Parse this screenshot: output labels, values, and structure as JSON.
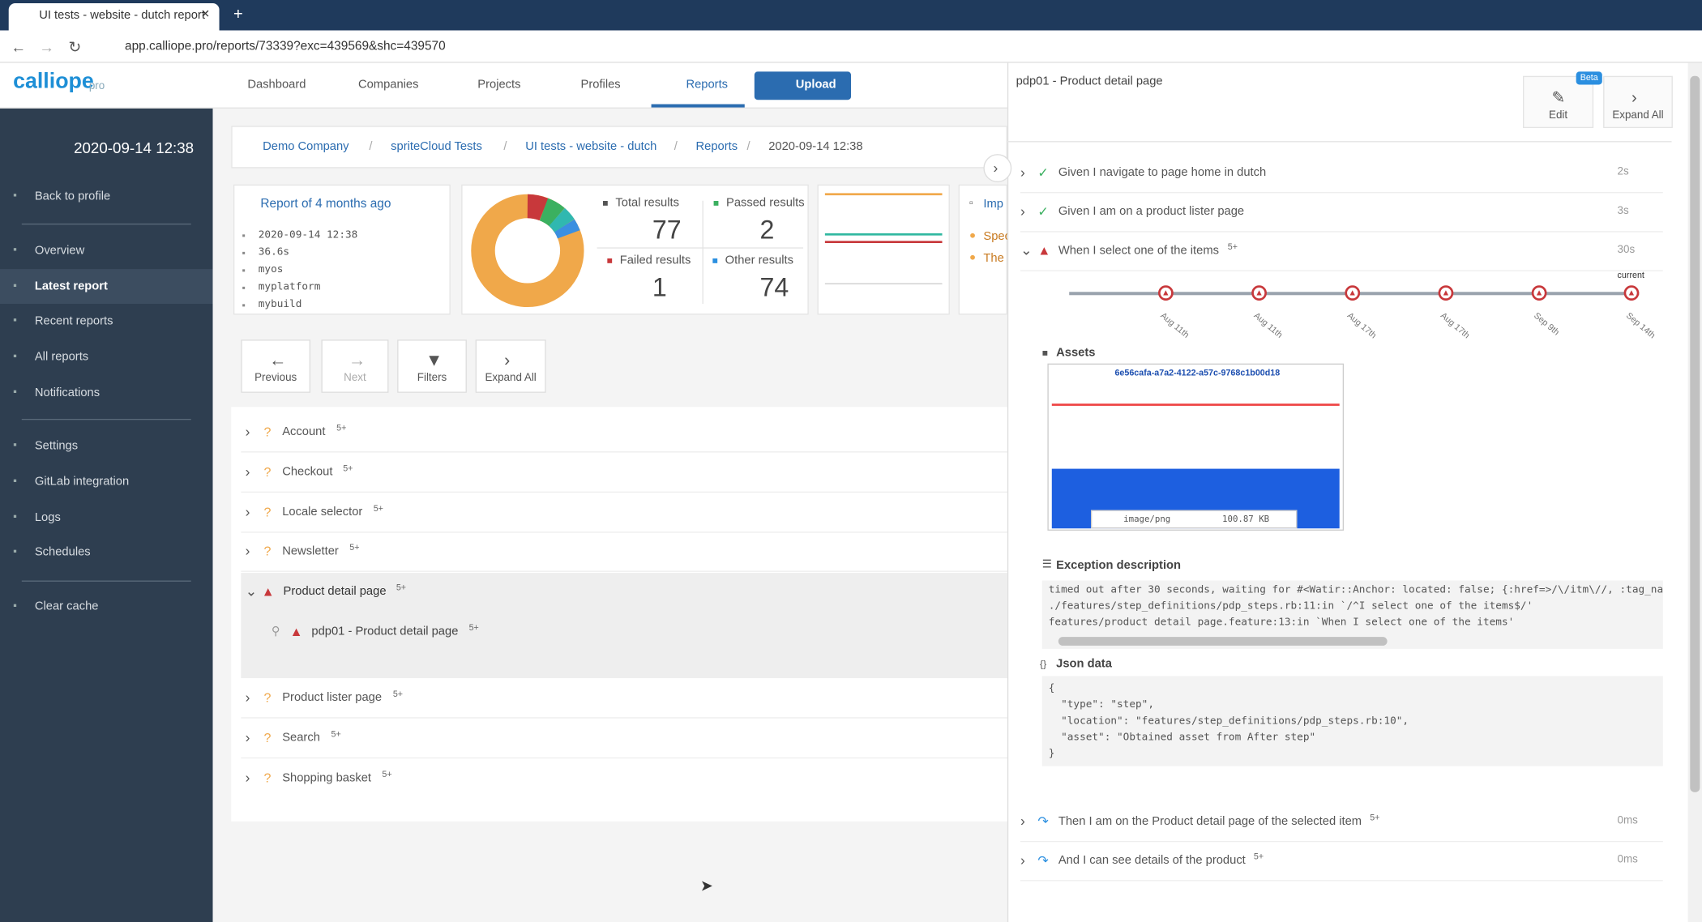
{
  "browser": {
    "tab_title": "UI tests - website - dutch report",
    "url": "app.calliope.pro/reports/73339?exc=439569&shc=439570"
  },
  "brand": {
    "logo": "calliope",
    "suffix": "pro"
  },
  "nav": [
    "Dashboard",
    "Companies",
    "Projects",
    "Profiles",
    "Reports",
    "Upload"
  ],
  "sidebar": {
    "date": "2020-09-14 12:38",
    "items": [
      "Back to profile",
      "Overview",
      "Latest report",
      "Recent reports",
      "All reports",
      "Notifications",
      "Settings",
      "GitLab integration",
      "Logs",
      "Schedules",
      "Clear cache"
    ]
  },
  "breadcrumb": [
    "Demo Company",
    "spriteCloud Tests",
    "UI tests - website - dutch",
    "Reports",
    "2020-09-14 12:38"
  ],
  "report": {
    "heading": "Report of 4 months ago",
    "meta": [
      "2020-09-14 12:38",
      "36.6s",
      "myos",
      "myplatform",
      "mybuild"
    ]
  },
  "stats": [
    {
      "label": "Total results",
      "value": 77
    },
    {
      "label": "Passed results",
      "value": 2
    },
    {
      "label": "Failed results",
      "value": 1
    },
    {
      "label": "Other results",
      "value": 74
    }
  ],
  "side_labels": [
    "Imp",
    "Spec",
    "The"
  ],
  "toolbar": [
    "Previous",
    "Next",
    "Filters",
    "Expand All"
  ],
  "features": [
    {
      "name": "Account",
      "badge": "5+"
    },
    {
      "name": "Checkout",
      "badge": "5+"
    },
    {
      "name": "Locale selector",
      "badge": "5+"
    },
    {
      "name": "Newsletter",
      "badge": "5+"
    },
    {
      "name": "Product detail page",
      "badge": "5+"
    },
    {
      "name": "Product lister page",
      "badge": "5+"
    },
    {
      "name": "Search",
      "badge": "5+"
    },
    {
      "name": "Shopping basket",
      "badge": "5+"
    }
  ],
  "scenario": {
    "name": "pdp01 - Product detail page",
    "badge": "5+"
  },
  "panel": {
    "title": "pdp01 - Product detail page",
    "beta": "Beta",
    "buttons": [
      "Edit",
      "Expand All"
    ],
    "steps": [
      {
        "text": "Given I navigate to page home in dutch",
        "duration": "2s"
      },
      {
        "text": "Given I am on a product lister page",
        "duration": "3s"
      },
      {
        "text": "When I select one of the items",
        "badge": "5+",
        "duration": "30s"
      },
      {
        "text": "Then I am on the Product detail page of the selected item",
        "badge": "5+",
        "duration": "0ms"
      },
      {
        "text": "And I can see details of the product",
        "badge": "5+",
        "duration": "0ms"
      }
    ],
    "timeline": {
      "dates": [
        "Aug 11th",
        "Aug 11th",
        "Aug 17th",
        "Aug 17th",
        "Sep 9th",
        "Sep 14th"
      ],
      "current": "current"
    },
    "assets": {
      "title": "Assets",
      "id": "6e56cafa-a7a2-4122-a57c-9768c1b00d18",
      "type": "image/png",
      "size": "100.87 KB"
    },
    "exception": {
      "title": "Exception description",
      "lines": [
        "timed out after 30 seconds, waiting for #<Watir::Anchor: located: false; {:href=>/\\/itm\\//, :tag_na",
        "./features/step_definitions/pdp_steps.rb:11:in `/^I select one of the items$/'",
        "features/product detail page.feature:13:in `When I select one of the items'"
      ]
    },
    "json": {
      "title": "Json data",
      "lines": [
        "{",
        "  \"type\": \"step\",",
        "  \"location\": \"features/step_definitions/pdp_steps.rb:10\",",
        "  \"asset\": \"Obtained asset from After step\"",
        "}"
      ]
    }
  }
}
